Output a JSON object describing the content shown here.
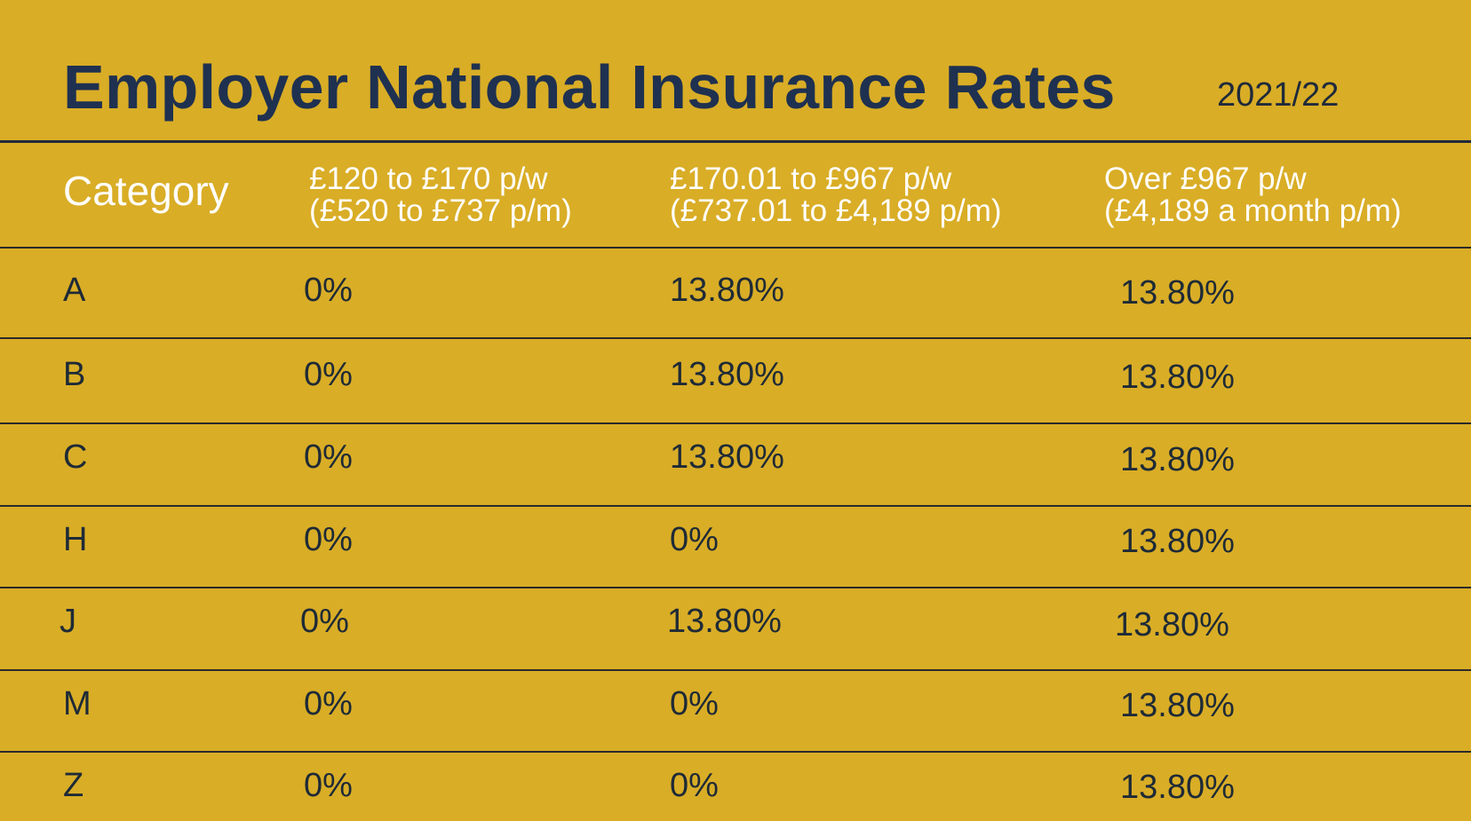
{
  "title": "Employer National Insurance Rates",
  "year": "2021/22",
  "table": {
    "headers": {
      "category": "Category",
      "band1": {
        "line1": "£120 to £170 p/w",
        "line2": "(£520 to £737 p/m)"
      },
      "band2": {
        "line1": "£170.01 to £967 p/w",
        "line2": "(£737.01 to £4,189 p/m)"
      },
      "band3": {
        "line1": "Over £967 p/w",
        "line2": "(£4,189 a month p/m)"
      }
    },
    "rows": [
      {
        "category": "A",
        "band1": "0%",
        "band2": "13.80%",
        "band3": "13.80%"
      },
      {
        "category": "B",
        "band1": "0%",
        "band2": "13.80%",
        "band3": "13.80%"
      },
      {
        "category": "C",
        "band1": "0%",
        "band2": "13.80%",
        "band3": "13.80%"
      },
      {
        "category": "H",
        "band1": "0%",
        "band2": "0%",
        "band3": "13.80%"
      },
      {
        "category": "J",
        "band1": "0%",
        "band2": "13.80%",
        "band3": "13.80%"
      },
      {
        "category": "M",
        "band1": "0%",
        "band2": "0%",
        "band3": "13.80%"
      },
      {
        "category": "Z",
        "band1": "0%",
        "band2": "0%",
        "band3": "13.80%"
      }
    ]
  }
}
